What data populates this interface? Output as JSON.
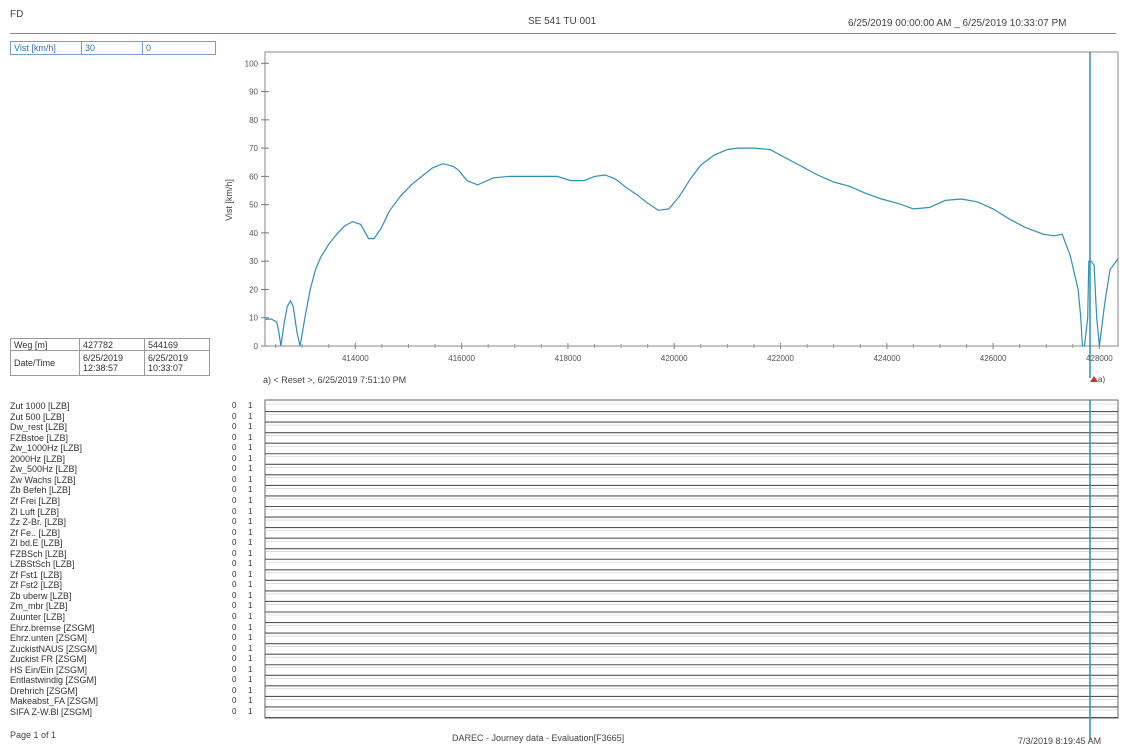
{
  "header": {
    "left": "FD",
    "center": "SE 541 TU 001",
    "right": "6/25/2019 00:00:00 AM _ 6/25/2019 10:33:07 PM"
  },
  "speed_box": {
    "label": "Vist [km/h]",
    "col2": "30",
    "col3": "0"
  },
  "info_table": {
    "rows": [
      {
        "label": "Weg [m]",
        "v1": "427782",
        "v2": "544169"
      },
      {
        "label": "Date/Time",
        "v1": "6/25/2019\n12:38:57",
        "v2": "6/25/2019\n10:33:07"
      }
    ]
  },
  "annotation": "a) < Reset >, 6/25/2019 7:51:10 PM",
  "marker": "a)",
  "chart_data": {
    "type": "line",
    "title": "",
    "xlabel": "",
    "ylabel": "Vist [km/h]",
    "xlim": [
      412300,
      428350
    ],
    "ylim": [
      0,
      104
    ],
    "xticks": [
      414000,
      416000,
      418000,
      420000,
      422000,
      424000,
      426000,
      428000
    ],
    "yticks": [
      0,
      10,
      20,
      30,
      40,
      50,
      60,
      70,
      80,
      90,
      100
    ],
    "grid": false,
    "series": [
      {
        "color": "#2f8fb8",
        "x": [
          412300,
          412420,
          412520,
          412560,
          412600,
          412660,
          412720,
          412780,
          412830,
          412900,
          412960,
          413050,
          413150,
          413250,
          413350,
          413500,
          413650,
          413800,
          413950,
          414100,
          414250,
          414350,
          414480,
          414650,
          414850,
          415050,
          415250,
          415450,
          415650,
          415850,
          415950,
          416100,
          416300,
          416600,
          416900,
          417200,
          417500,
          417800,
          418050,
          418300,
          418500,
          418700,
          418900,
          419100,
          419300,
          419500,
          419700,
          419900,
          420100,
          420300,
          420500,
          420750,
          421000,
          421200,
          421500,
          421800,
          422100,
          422400,
          422700,
          423000,
          423300,
          423600,
          423900,
          424200,
          424500,
          424800,
          425100,
          425400,
          425700,
          426000,
          426300,
          426600,
          426950,
          427150,
          427300,
          427450,
          427600,
          427650,
          427680,
          427720,
          427780,
          427800,
          427850,
          427900,
          427950,
          428000,
          428100,
          428200,
          428300,
          428350
        ],
        "y": [
          9.5,
          9.5,
          8.5,
          5,
          0,
          8,
          14,
          16,
          14,
          5,
          0,
          10,
          20,
          27,
          31.5,
          36,
          39.5,
          42.5,
          44,
          43,
          38,
          38,
          41.5,
          48,
          53,
          57,
          60,
          63,
          64.5,
          63.5,
          62,
          58.5,
          57,
          59.5,
          60,
          60,
          60,
          60,
          58.5,
          58.5,
          60,
          60.5,
          59,
          56,
          53.5,
          50.5,
          48,
          48.5,
          53,
          59,
          64,
          67.5,
          69.5,
          70,
          70,
          69.5,
          66.5,
          63.5,
          60.5,
          58,
          56.5,
          54,
          52,
          50.5,
          48.5,
          49,
          51.5,
          52,
          51,
          48.5,
          45,
          42,
          39.5,
          39,
          39.5,
          32,
          20,
          10,
          0,
          0,
          10,
          30,
          30,
          28.5,
          10,
          0,
          15,
          27,
          29.5,
          31
        ]
      }
    ]
  },
  "signals": {
    "names": [
      "Zut 1000 [LZB]",
      "Zut 500 [LZB]",
      "Dw_rest [LZB]",
      "FZBstoe [LZB]",
      "Zw_1000Hz [LZB]",
      "2000Hz [LZB]",
      "Zw_500Hz [LZB]",
      "Zw Wachs [LZB]",
      "Zb Befeh [LZB]",
      "Zf Frei [LZB]",
      "Zl Luft [LZB]",
      "Zz Z-Br. [LZB]",
      "Zf Fe.. [LZB]",
      "Zl bd.E [LZB]",
      "FZBSch [LZB]",
      "LZBStSch [LZB]",
      "Zf Fst1 [LZB]",
      "Zf Fst2 [LZB]",
      "Zb uberw [LZB]",
      "Zm_mbr [LZB]",
      "Zuunter [LZB]",
      "Ehrz.bremse [ZSGM]",
      "Ehrz.unten [ZSGM]",
      "ZuckistNAUS [ZSGM]",
      "Zuckist FR [ZSGM]",
      "HS Ein/Ein [ZSGM]",
      "Entlastwindig [ZSGM]",
      "Drehrich [ZSGM]",
      "Makeabst_FA [ZSGM]",
      "SIFA Z-W.Bl [ZSGM]"
    ],
    "low": "0",
    "high": "1"
  },
  "footer": {
    "left": "Page 1 of 1",
    "center": "DAREC - Journey data - Evaluation[F3665]",
    "right": "7/3/2019 8:19:45 AM"
  }
}
